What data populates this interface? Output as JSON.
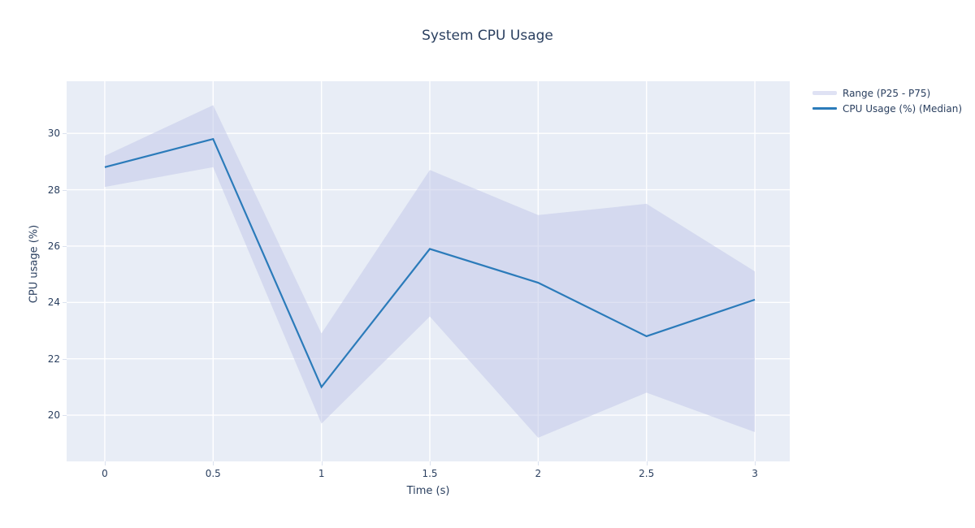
{
  "colors": {
    "plot_bg": "#e8edf6",
    "grid": "#ffffff",
    "band_fill": "rgba(192,197,232,0.5)",
    "band_legend": "#dfe2f4",
    "line": "#2b7bba",
    "text": "#2a3f5f",
    "tick_stub": "#dbe2ef"
  },
  "chart_data": {
    "type": "line",
    "title": "System CPU Usage",
    "xlabel": "Time (s)",
    "ylabel": "CPU usage (%)",
    "x": [
      0,
      0.5,
      1,
      1.5,
      2,
      2.5,
      3
    ],
    "series": [
      {
        "name": "Range (P25 - P75)",
        "type": "band",
        "lower": [
          28.1,
          28.8,
          19.7,
          23.5,
          19.2,
          20.8,
          19.4
        ],
        "upper": [
          29.2,
          31.0,
          22.9,
          28.7,
          27.1,
          27.5,
          25.1
        ]
      },
      {
        "name": "CPU Usage (%) (Median)",
        "type": "line",
        "values": [
          28.8,
          29.8,
          21.0,
          25.9,
          24.7,
          22.8,
          24.1
        ]
      }
    ],
    "xticks": [
      0,
      0.5,
      1,
      1.5,
      2,
      2.5,
      3
    ],
    "xtick_labels": [
      "0",
      "0.5",
      "1",
      "1.5",
      "2",
      "2.5",
      "3"
    ],
    "yticks": [
      20,
      22,
      24,
      26,
      28,
      30
    ],
    "ytick_labels": [
      "20",
      "22",
      "24",
      "26",
      "28",
      "30"
    ],
    "xlim": [
      -0.176,
      3.161
    ],
    "ylim": [
      18.36,
      31.85
    ],
    "grid": true,
    "legend_position": "right"
  }
}
